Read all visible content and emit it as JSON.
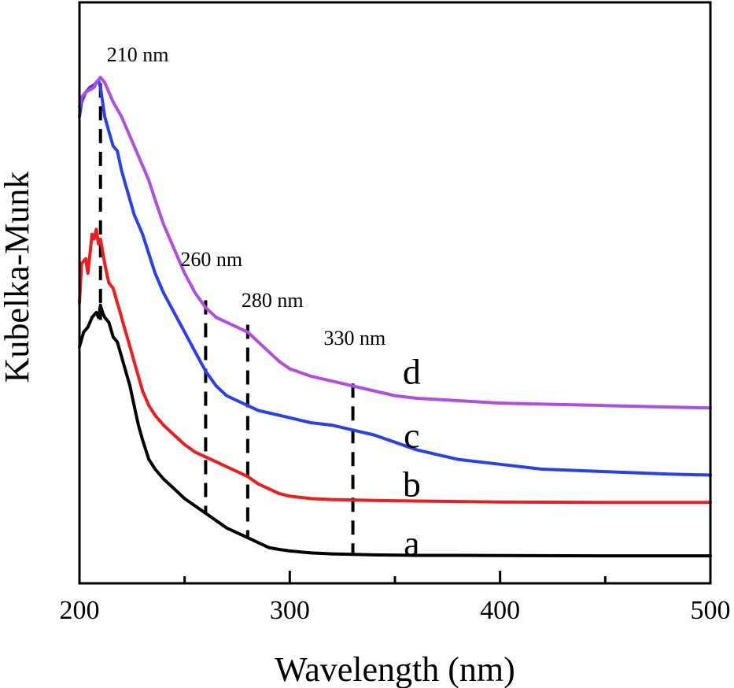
{
  "chart_data": {
    "type": "line",
    "xlabel": "Wavelength (nm)",
    "ylabel": "Kubelka-Munk",
    "xlim": [
      200,
      500
    ],
    "ylim": [
      0,
      100
    ],
    "x_ticks_major": [
      200,
      300,
      400,
      500
    ],
    "x_tick_labels": [
      "200",
      "300",
      "400",
      "500"
    ],
    "x_ticks_minor": [
      250,
      350,
      450
    ],
    "y_tick_labels": false,
    "grid": false,
    "legend": "none",
    "colors": {
      "a": "#000000",
      "b": "#ee1c1c",
      "c": "#2b3ff2",
      "d": "#b04de6"
    },
    "series": [
      {
        "name": "a",
        "color": "#000000",
        "points": [
          [
            200,
            43
          ],
          [
            202,
            46
          ],
          [
            204,
            47
          ],
          [
            206,
            49
          ],
          [
            208,
            50
          ],
          [
            209,
            49
          ],
          [
            210,
            51.5
          ],
          [
            211,
            50
          ],
          [
            212,
            49
          ],
          [
            214,
            48
          ],
          [
            216,
            45
          ],
          [
            218,
            44
          ],
          [
            220,
            41
          ],
          [
            222,
            38
          ],
          [
            224,
            35
          ],
          [
            226,
            31
          ],
          [
            228,
            27
          ],
          [
            230,
            24
          ],
          [
            233,
            20
          ],
          [
            236,
            18
          ],
          [
            240,
            16
          ],
          [
            245,
            14
          ],
          [
            250,
            12
          ],
          [
            255,
            10.5
          ],
          [
            260,
            9
          ],
          [
            265,
            7.5
          ],
          [
            270,
            6
          ],
          [
            275,
            5
          ],
          [
            280,
            4
          ],
          [
            285,
            3
          ],
          [
            290,
            2
          ],
          [
            295,
            1.6
          ],
          [
            300,
            1.3
          ],
          [
            310,
            0.9
          ],
          [
            320,
            0.7
          ],
          [
            330,
            0.6
          ],
          [
            340,
            0.5
          ],
          [
            360,
            0.4
          ],
          [
            380,
            0.4
          ],
          [
            400,
            0.35
          ],
          [
            450,
            0.3
          ],
          [
            500,
            0.3
          ]
        ]
      },
      {
        "name": "b",
        "color": "#ee1c1c",
        "points": [
          [
            200,
            52
          ],
          [
            201,
            60
          ],
          [
            203,
            61
          ],
          [
            204,
            58
          ],
          [
            205,
            62
          ],
          [
            206,
            66
          ],
          [
            207,
            65
          ],
          [
            208,
            67
          ],
          [
            209,
            64
          ],
          [
            210,
            65
          ],
          [
            212,
            60
          ],
          [
            214,
            56
          ],
          [
            216,
            55
          ],
          [
            218,
            52
          ],
          [
            220,
            49
          ],
          [
            222,
            46
          ],
          [
            224,
            43
          ],
          [
            226,
            40
          ],
          [
            228,
            37
          ],
          [
            230,
            34
          ],
          [
            233,
            31
          ],
          [
            236,
            29
          ],
          [
            240,
            27
          ],
          [
            245,
            25
          ],
          [
            250,
            23
          ],
          [
            255,
            21.5
          ],
          [
            260,
            20.5
          ],
          [
            265,
            19.5
          ],
          [
            270,
            18.5
          ],
          [
            275,
            17.5
          ],
          [
            280,
            16.5
          ],
          [
            285,
            15
          ],
          [
            290,
            14
          ],
          [
            295,
            13
          ],
          [
            300,
            12.5
          ],
          [
            310,
            12
          ],
          [
            320,
            11.8
          ],
          [
            340,
            11.6
          ],
          [
            360,
            11.5
          ],
          [
            400,
            11.3
          ],
          [
            450,
            11.2
          ],
          [
            500,
            11.2
          ]
        ]
      },
      {
        "name": "c",
        "color": "#2b3ff2",
        "points": [
          [
            200,
            90
          ],
          [
            201,
            93
          ],
          [
            203,
            95
          ],
          [
            205,
            96
          ],
          [
            207,
            96.5
          ],
          [
            208,
            97
          ],
          [
            209,
            97.5
          ],
          [
            210,
            96
          ],
          [
            212,
            90
          ],
          [
            214,
            87
          ],
          [
            216,
            84
          ],
          [
            218,
            83
          ],
          [
            220,
            79
          ],
          [
            222,
            76
          ],
          [
            224,
            73
          ],
          [
            226,
            70
          ],
          [
            228,
            68
          ],
          [
            230,
            66
          ],
          [
            233,
            62
          ],
          [
            236,
            58
          ],
          [
            240,
            54
          ],
          [
            245,
            50
          ],
          [
            250,
            46
          ],
          [
            255,
            42
          ],
          [
            260,
            38
          ],
          [
            265,
            35
          ],
          [
            270,
            33
          ],
          [
            275,
            32
          ],
          [
            280,
            31
          ],
          [
            285,
            30
          ],
          [
            290,
            29.5
          ],
          [
            295,
            29
          ],
          [
            300,
            28.5
          ],
          [
            310,
            27.5
          ],
          [
            320,
            27
          ],
          [
            330,
            26
          ],
          [
            340,
            25
          ],
          [
            350,
            23.5
          ],
          [
            360,
            22
          ],
          [
            370,
            21
          ],
          [
            380,
            20
          ],
          [
            400,
            19
          ],
          [
            420,
            18
          ],
          [
            450,
            17.5
          ],
          [
            480,
            17
          ],
          [
            500,
            16.8
          ]
        ]
      },
      {
        "name": "d",
        "color": "#b04de6",
        "points": [
          [
            200,
            92
          ],
          [
            201,
            94
          ],
          [
            203,
            95
          ],
          [
            205,
            95.5
          ],
          [
            207,
            96
          ],
          [
            208,
            97
          ],
          [
            209,
            97.5
          ],
          [
            210,
            98
          ],
          [
            212,
            97
          ],
          [
            214,
            95
          ],
          [
            216,
            93
          ],
          [
            218,
            91.5
          ],
          [
            220,
            90
          ],
          [
            222,
            88
          ],
          [
            224,
            86
          ],
          [
            226,
            84
          ],
          [
            228,
            82
          ],
          [
            230,
            80
          ],
          [
            233,
            77
          ],
          [
            236,
            73
          ],
          [
            240,
            68
          ],
          [
            245,
            63
          ],
          [
            250,
            58
          ],
          [
            255,
            54
          ],
          [
            260,
            51
          ],
          [
            265,
            49
          ],
          [
            270,
            48
          ],
          [
            275,
            47
          ],
          [
            280,
            46
          ],
          [
            285,
            44
          ],
          [
            290,
            42
          ],
          [
            295,
            40
          ],
          [
            300,
            38.5
          ],
          [
            310,
            37
          ],
          [
            320,
            36
          ],
          [
            330,
            35
          ],
          [
            340,
            34
          ],
          [
            350,
            33
          ],
          [
            360,
            32.5
          ],
          [
            380,
            32
          ],
          [
            400,
            31.5
          ],
          [
            450,
            31
          ],
          [
            500,
            30.5
          ]
        ]
      }
    ],
    "reference_lines": [
      {
        "x": 210,
        "label": "210 nm",
        "y_top": 96.8,
        "y_bottom": 48.5
      },
      {
        "x": 260,
        "label": "260 nm",
        "y_top": 52.5,
        "y_bottom": 8.8
      },
      {
        "x": 280,
        "label": "280 nm",
        "y_top": 47.5,
        "y_bottom": 3.8
      },
      {
        "x": 330,
        "label": "330 nm",
        "y_top": 35.5,
        "y_bottom": 0.6
      }
    ],
    "curve_labels": [
      {
        "text": "a",
        "x": 358,
        "y": 3
      },
      {
        "text": "b",
        "x": 358,
        "y": 15
      },
      {
        "text": "c",
        "x": 358,
        "y": 25
      },
      {
        "text": "d",
        "x": 358,
        "y": 38
      }
    ]
  }
}
